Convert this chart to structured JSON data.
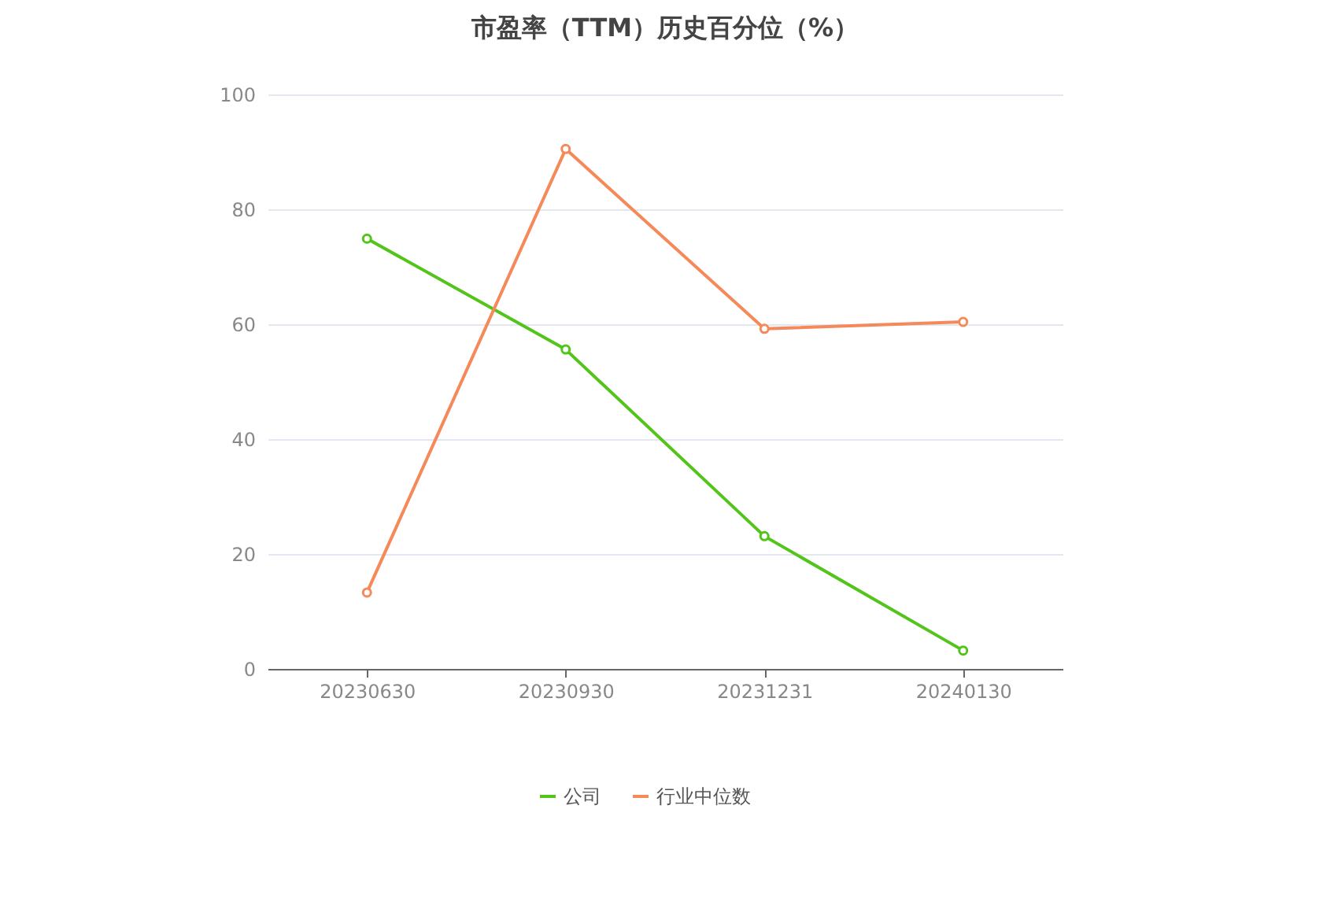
{
  "chart_data": {
    "type": "line",
    "title": "市盈率（TTM）历史百分位（%）",
    "categories": [
      "20230630",
      "20230930",
      "20231231",
      "20240130"
    ],
    "series": [
      {
        "name": "公司",
        "color": "#52c41a",
        "values": [
          74.9,
          55.6,
          23.1,
          3.2
        ]
      },
      {
        "name": "行业中位数",
        "color": "#f5895a",
        "values": [
          13.3,
          90.5,
          59.2,
          60.4
        ]
      }
    ],
    "ylim": [
      0,
      100
    ],
    "yticks": [
      0,
      20,
      40,
      60,
      80,
      100
    ],
    "grid": "y",
    "legend": "bottom",
    "marker": "circle",
    "line_style": "solid"
  }
}
